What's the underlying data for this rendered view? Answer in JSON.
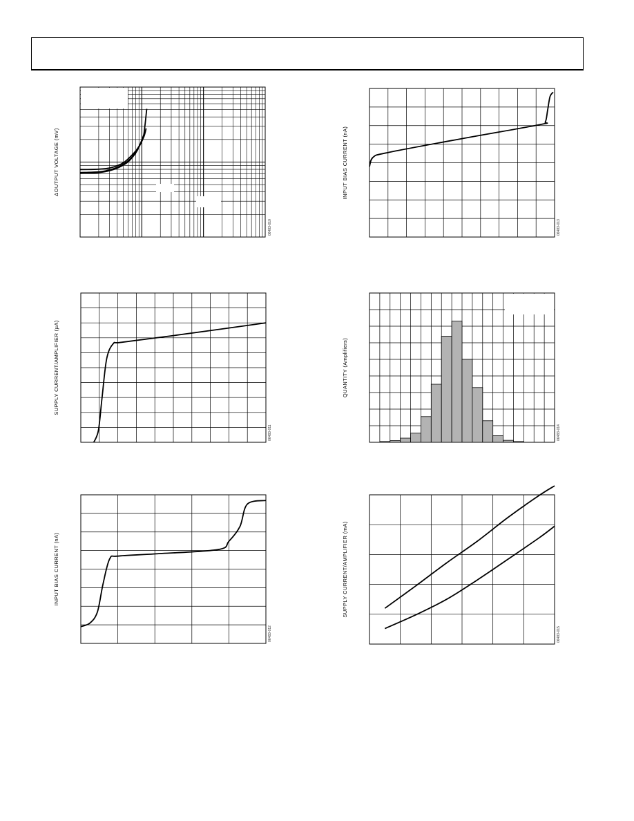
{
  "page": {
    "header_text": ""
  },
  "chart_data": [
    {
      "id": "delta-output-voltage",
      "type": "line",
      "ylabel": "ΔOUTPUT VOLTAGE (mV)",
      "figure_code": "06483-010",
      "xscale": "log",
      "yscale": "log",
      "x_decades": 3,
      "y_decades": 2,
      "grid": true,
      "series": [
        {
          "values": [
            [
              0.0,
              0.9
            ],
            [
              0.3,
              0.905
            ],
            [
              0.5,
              0.925
            ],
            [
              0.68,
              0.98
            ],
            [
              0.8,
              1.06
            ],
            [
              0.93,
              1.18
            ],
            [
              1.03,
              1.33
            ],
            [
              1.07,
              1.45
            ]
          ]
        },
        {
          "values": [
            [
              0.0,
              0.86
            ],
            [
              0.3,
              0.87
            ],
            [
              0.5,
              0.9
            ],
            [
              0.68,
              0.96
            ],
            [
              0.82,
              1.05
            ],
            [
              0.93,
              1.17
            ],
            [
              1.02,
              1.32
            ],
            [
              1.05,
              1.48
            ],
            [
              1.08,
              1.71
            ]
          ]
        },
        {
          "values": [
            [
              0.0,
              0.85
            ],
            [
              0.3,
              0.86
            ],
            [
              0.5,
              0.89
            ],
            [
              0.68,
              0.95
            ],
            [
              0.8,
              1.02
            ],
            [
              0.93,
              1.16
            ],
            [
              1.04,
              1.38
            ]
          ]
        }
      ]
    },
    {
      "id": "input-bias-current-right",
      "type": "line",
      "ylabel": "INPUT BIAS CURRENT (nA)",
      "figure_code": "06483-013",
      "x_divisions": 10,
      "y_divisions": 8,
      "grid": true,
      "series": [
        {
          "values": [
            [
              0.0,
              3.8
            ],
            [
              0.2,
              4.3
            ],
            [
              1.0,
              4.55
            ],
            [
              5.0,
              5.3
            ],
            [
              9.2,
              6.05
            ],
            [
              9.5,
              6.2
            ],
            [
              9.62,
              6.8
            ],
            [
              9.75,
              7.55
            ],
            [
              9.92,
              7.8
            ]
          ]
        }
      ]
    },
    {
      "id": "supply-current-vs-supply",
      "type": "line",
      "ylabel": "SUPPLY CURRENT/AMPLIFIER (µA)",
      "figure_code": "06483-011",
      "x_divisions": 10,
      "y_divisions": 10,
      "grid": true,
      "series": [
        {
          "values": [
            [
              0.7,
              0.0
            ],
            [
              0.95,
              0.8
            ],
            [
              1.15,
              3.0
            ],
            [
              1.4,
              5.6
            ],
            [
              1.75,
              6.6
            ],
            [
              2.2,
              6.7
            ],
            [
              5.0,
              7.15
            ],
            [
              10.0,
              8.0
            ]
          ]
        }
      ]
    },
    {
      "id": "quantity-histogram",
      "type": "bar",
      "ylabel": "QUANTITY (Amplifiers)",
      "figure_code": "06483-014",
      "x_divisions": 18,
      "y_divisions": 9,
      "grid": true,
      "bar_start_col": 1,
      "values": [
        0.05,
        0.1,
        0.25,
        0.55,
        1.55,
        3.5,
        6.4,
        7.3,
        5.0,
        3.3,
        1.3,
        0.4,
        0.12,
        0.05
      ],
      "ylim": [
        0,
        9
      ]
    },
    {
      "id": "input-bias-current-left",
      "type": "line",
      "ylabel": "INPUT BIAS CURRENT (nA)",
      "figure_code": "06483-012",
      "x_divisions": 5,
      "y_divisions": 8,
      "grid": true,
      "series": [
        {
          "values": [
            [
              0.0,
              0.9
            ],
            [
              0.25,
              1.1
            ],
            [
              0.45,
              1.7
            ],
            [
              0.6,
              3.2
            ],
            [
              0.78,
              4.55
            ],
            [
              1.0,
              4.7
            ],
            [
              2.0,
              4.82
            ],
            [
              3.7,
              5.05
            ],
            [
              4.0,
              5.5
            ],
            [
              4.3,
              6.3
            ],
            [
              4.5,
              7.5
            ],
            [
              5.0,
              7.7
            ]
          ]
        }
      ]
    },
    {
      "id": "supply-current-vs-temperature",
      "type": "line",
      "ylabel": "SUPPLY CURRENT/AMPLIFIER (mA)",
      "figure_code": "06483-015",
      "x_divisions": 6,
      "y_divisions": 5,
      "grid": true,
      "series": [
        {
          "values": [
            [
              0.5,
              1.2
            ],
            [
              1.5,
              1.95
            ],
            [
              2.5,
              2.72
            ],
            [
              3.5,
              3.45
            ],
            [
              4.5,
              4.25
            ],
            [
              5.5,
              4.98
            ],
            [
              6.0,
              5.3
            ]
          ]
        },
        {
          "values": [
            [
              0.5,
              0.52
            ],
            [
              1.5,
              0.98
            ],
            [
              2.5,
              1.5
            ],
            [
              3.5,
              2.15
            ],
            [
              4.5,
              2.85
            ],
            [
              5.5,
              3.56
            ],
            [
              6.0,
              3.95
            ]
          ]
        }
      ]
    }
  ]
}
